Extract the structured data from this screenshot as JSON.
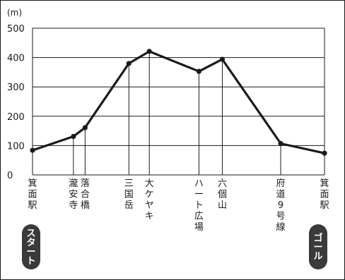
{
  "chart_data": {
    "type": "line",
    "unit_label": "(m)",
    "ylim": [
      0,
      500
    ],
    "y_ticks": [
      "0",
      "100",
      "200",
      "300",
      "400",
      "500"
    ],
    "grid": "horizontal",
    "points": [
      {
        "x": 0.0,
        "y": 84,
        "label": "箕面駅"
      },
      {
        "x": 0.14,
        "y": 131,
        "label": "瀧安寺"
      },
      {
        "x": 0.18,
        "y": 161,
        "label": "落合橋"
      },
      {
        "x": 0.33,
        "y": 380,
        "label": "三国岳"
      },
      {
        "x": 0.4,
        "y": 421,
        "label": "大ケヤキ"
      },
      {
        "x": 0.57,
        "y": 353,
        "label": "ハート広場"
      },
      {
        "x": 0.65,
        "y": 394,
        "label": "六個山"
      },
      {
        "x": 0.85,
        "y": 107,
        "label": "府道9号線"
      },
      {
        "x": 1.0,
        "y": 74,
        "label": "箕面駅"
      }
    ]
  },
  "badges": {
    "start": "スタート",
    "goal": "ゴール"
  },
  "colors": {
    "line": "#1a1a1a",
    "grid": "#1a1a1a",
    "badge": "#3a3a3a"
  }
}
